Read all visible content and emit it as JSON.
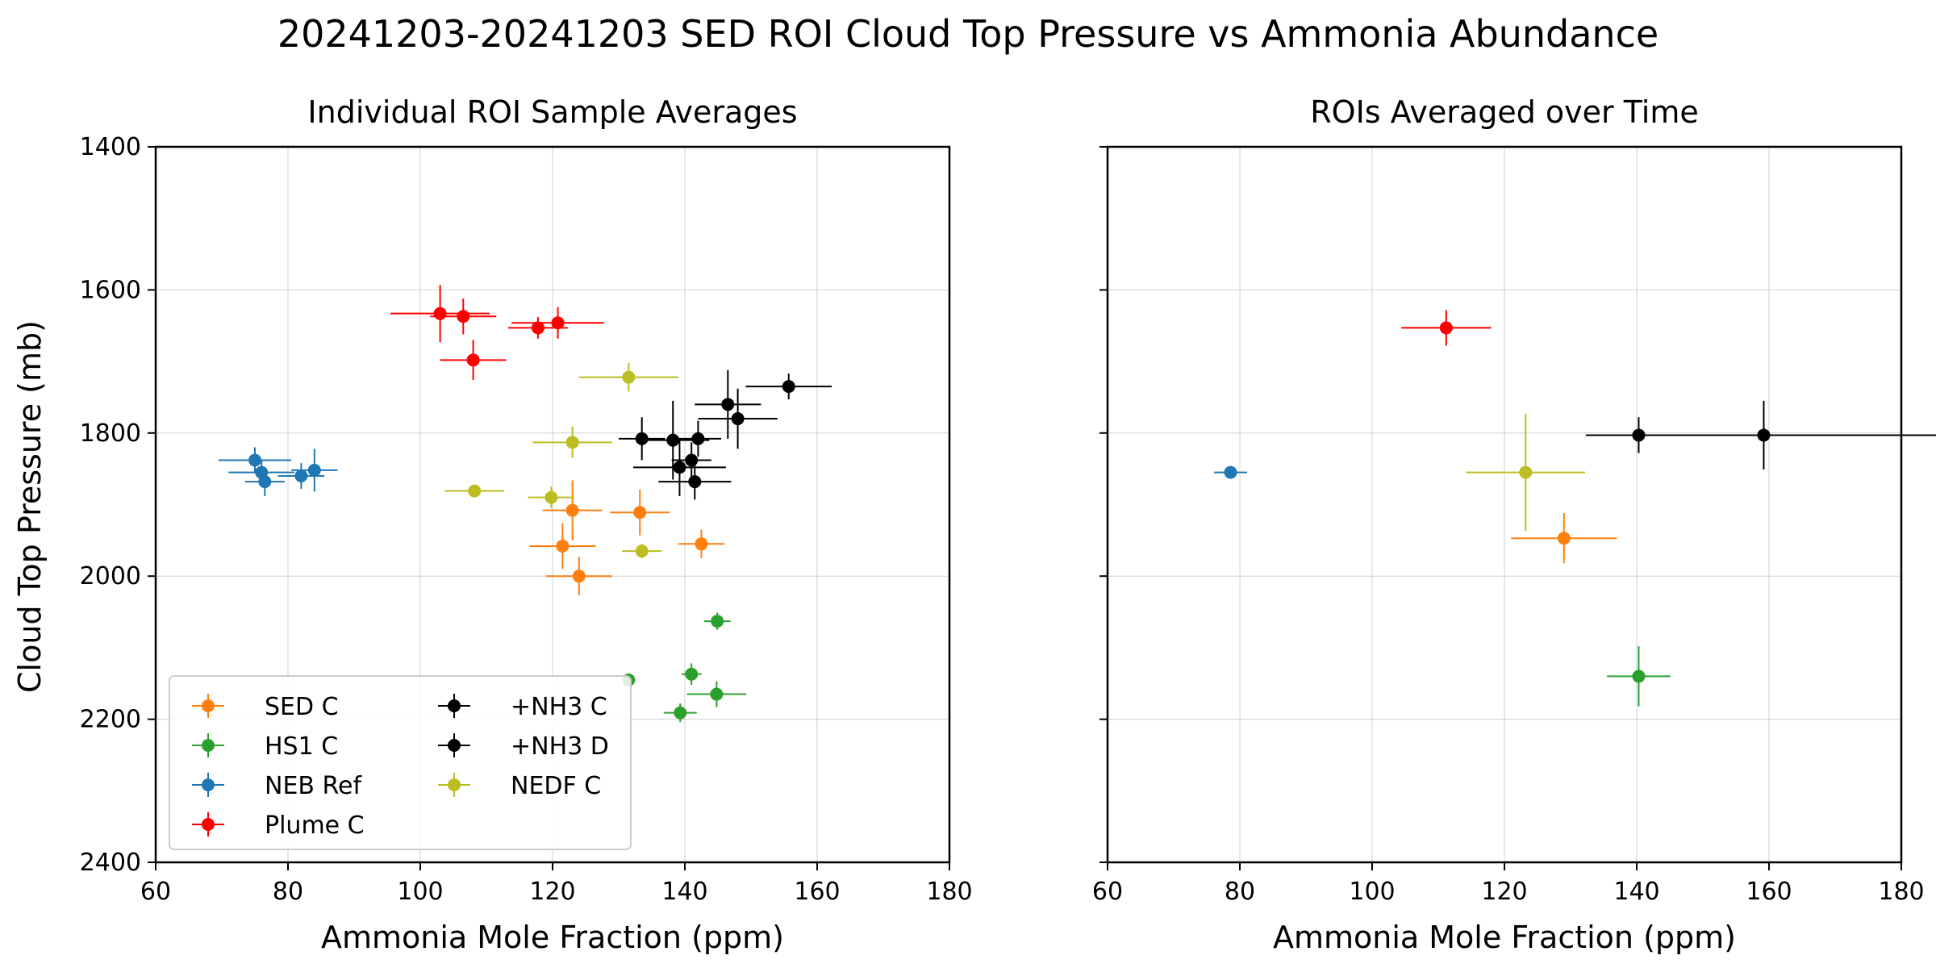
{
  "figure": {
    "suptitle": "20241203-20241203 SED ROI Cloud Top Pressure vs Ammonia Abundance"
  },
  "chart_data": [
    {
      "type": "scatter",
      "title": "Individual ROI Sample Averages",
      "xlabel": "Ammonia Mole Fraction (ppm)",
      "ylabel": "Cloud Top Pressure (mb)",
      "xlim": [
        60,
        180
      ],
      "ylim": [
        2400,
        1400
      ],
      "y_inverted": true,
      "x_ticks": [
        "60",
        "80",
        "100",
        "120",
        "140",
        "160",
        "180"
      ],
      "y_ticks": [
        "1400",
        "1600",
        "1800",
        "2000",
        "2200",
        "2400"
      ],
      "grid": true,
      "legend_position": "lower-left",
      "legend_columns": 2,
      "series": [
        {
          "name": "SED C",
          "color": "#ff7f0e",
          "points": [
            {
              "x": 123.0,
              "y": 1908,
              "xerr": 4.5,
              "yerr": 42
            },
            {
              "x": 133.2,
              "y": 1911,
              "xerr": 4.5,
              "yerr": 32
            },
            {
              "x": 121.5,
              "y": 1958,
              "xerr": 5.0,
              "yerr": 32
            },
            {
              "x": 142.5,
              "y": 1955,
              "xerr": 3.5,
              "yerr": 20
            },
            {
              "x": 124.0,
              "y": 2000,
              "xerr": 5.0,
              "yerr": 27
            }
          ]
        },
        {
          "name": "HS1 C",
          "color": "#2ca02c",
          "points": [
            {
              "x": 144.9,
              "y": 2063,
              "xerr": 2.0,
              "yerr": 12
            },
            {
              "x": 141.0,
              "y": 2137,
              "xerr": 1.5,
              "yerr": 15
            },
            {
              "x": 131.5,
              "y": 2145,
              "xerr": 1.0,
              "yerr": 8
            },
            {
              "x": 144.8,
              "y": 2165,
              "xerr": 4.5,
              "yerr": 18
            },
            {
              "x": 139.3,
              "y": 2191,
              "xerr": 2.5,
              "yerr": 13
            }
          ]
        },
        {
          "name": "NEB Ref",
          "color": "#1f77b4",
          "points": [
            {
              "x": 75.0,
              "y": 1838,
              "xerr": 5.5,
              "yerr": 18
            },
            {
              "x": 76.0,
              "y": 1855,
              "xerr": 5.0,
              "yerr": 18
            },
            {
              "x": 76.5,
              "y": 1868,
              "xerr": 3.0,
              "yerr": 20
            },
            {
              "x": 82.0,
              "y": 1860,
              "xerr": 3.5,
              "yerr": 18
            },
            {
              "x": 84.0,
              "y": 1852,
              "xerr": 3.5,
              "yerr": 30
            }
          ]
        },
        {
          "name": "Plume C",
          "color": "#ff0000",
          "points": [
            {
              "x": 103.0,
              "y": 1633,
              "xerr": 7.5,
              "yerr": 40
            },
            {
              "x": 106.5,
              "y": 1637,
              "xerr": 5.0,
              "yerr": 25
            },
            {
              "x": 117.8,
              "y": 1653,
              "xerr": 4.5,
              "yerr": 15
            },
            {
              "x": 120.8,
              "y": 1646,
              "xerr": 7.0,
              "yerr": 22
            },
            {
              "x": 108.0,
              "y": 1698,
              "xerr": 5.0,
              "yerr": 28
            }
          ]
        },
        {
          "name": "+NH3 C",
          "color": "#000000",
          "points": [
            {
              "x": 155.7,
              "y": 1735,
              "xerr": 6.5,
              "yerr": 18
            },
            {
              "x": 146.5,
              "y": 1760,
              "xerr": 5.0,
              "yerr": 48
            },
            {
              "x": 148.0,
              "y": 1780,
              "xerr": 6.0,
              "yerr": 42
            },
            {
              "x": 133.5,
              "y": 1808,
              "xerr": 3.5,
              "yerr": 30
            },
            {
              "x": 138.2,
              "y": 1810,
              "xerr": 5.5,
              "yerr": 55
            }
          ]
        },
        {
          "name": "+NH3 D",
          "color": "#000000",
          "points": [
            {
              "x": 142.0,
              "y": 1808,
              "xerr": 3.5,
              "yerr": 25
            },
            {
              "x": 141.0,
              "y": 1838,
              "xerr": 3.0,
              "yerr": 25
            },
            {
              "x": 139.2,
              "y": 1848,
              "xerr": 7.0,
              "yerr": 40
            },
            {
              "x": 141.5,
              "y": 1868,
              "xerr": 5.5,
              "yerr": 25
            }
          ]
        },
        {
          "name": "NEDF C",
          "color": "#bcbd22",
          "points": [
            {
              "x": 131.5,
              "y": 1722,
              "xerr": 7.5,
              "yerr": 20
            },
            {
              "x": 123.0,
              "y": 1813,
              "xerr": 6.0,
              "yerr": 22
            },
            {
              "x": 108.2,
              "y": 1881,
              "xerr": 4.5,
              "yerr": 8
            },
            {
              "x": 119.8,
              "y": 1890,
              "xerr": 3.5,
              "yerr": 15
            },
            {
              "x": 133.5,
              "y": 1965,
              "xerr": 3.0,
              "yerr": 10
            }
          ]
        }
      ]
    },
    {
      "type": "scatter",
      "title": "ROIs Averaged over Time",
      "xlabel": "Ammonia Mole Fraction (ppm)",
      "xlim": [
        60,
        180
      ],
      "ylim": [
        2400,
        1400
      ],
      "y_inverted": true,
      "x_ticks": [
        "60",
        "80",
        "100",
        "120",
        "140",
        "160",
        "180"
      ],
      "y_tick_labels_shown": false,
      "grid": true,
      "series": [
        {
          "name": "SED C",
          "color": "#ff7f0e",
          "points": [
            {
              "x": 129.0,
              "y": 1947,
              "xerr": 8.0,
              "yerr": 35
            }
          ]
        },
        {
          "name": "HS1 C",
          "color": "#2ca02c",
          "points": [
            {
              "x": 140.3,
              "y": 2140,
              "xerr": 4.8,
              "yerr": 42
            }
          ]
        },
        {
          "name": "NEB Ref",
          "color": "#1f77b4",
          "points": [
            {
              "x": 78.6,
              "y": 1855,
              "xerr": 2.5,
              "yerr": 8
            }
          ]
        },
        {
          "name": "Plume C",
          "color": "#ff0000",
          "points": [
            {
              "x": 111.2,
              "y": 1653,
              "xerr": 6.8,
              "yerr": 25
            }
          ]
        },
        {
          "name": "+NH3 C",
          "color": "#000000",
          "points": [
            {
              "x": 140.3,
              "y": 1803,
              "xerr": 8.0,
              "yerr": 25
            }
          ]
        },
        {
          "name": "+NH3 D",
          "color": "#000000",
          "points": [
            {
              "x": 159.2,
              "y": 1803,
              "xerr": 26.8,
              "yerr": 48
            }
          ]
        },
        {
          "name": "NEDF C",
          "color": "#bcbd22",
          "points": [
            {
              "x": 123.2,
              "y": 1855,
              "xerr": 9.0,
              "yerr": 82
            }
          ]
        }
      ]
    }
  ]
}
